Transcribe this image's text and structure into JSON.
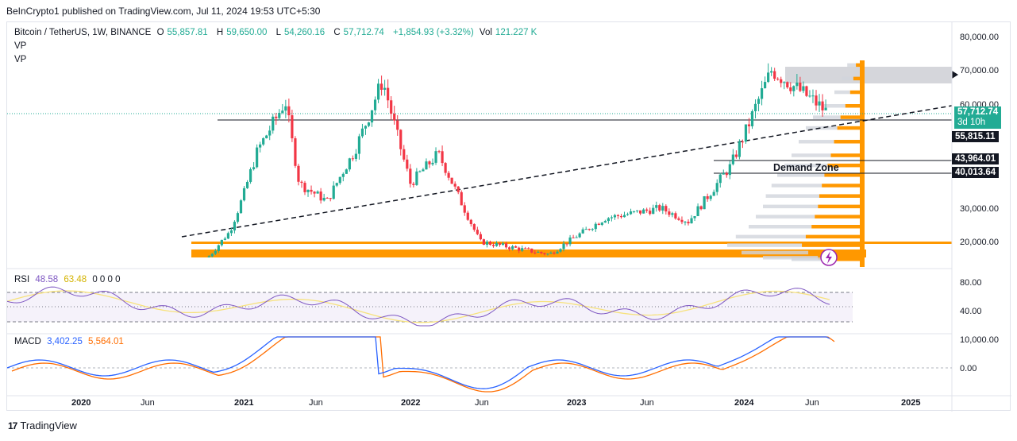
{
  "publisher": "BeInCrypto1 published on TradingView.com, Jul 11, 2024 19:53 UTC+5:30",
  "symbol": {
    "name": "Bitcoin / TetherUS, 1W, BINANCE",
    "o_label": "O",
    "o": "55,857.81",
    "h_label": "H",
    "h": "59,650.00",
    "l_label": "L",
    "l": "54,260.16",
    "c_label": "C",
    "c": "57,712.74",
    "change": "+1,854.93 (+3.32%)",
    "vol_label": "Vol",
    "vol": "121.227 K"
  },
  "indicators_top": [
    "VP",
    "VP"
  ],
  "rsi_legend": {
    "name": "RSI",
    "v1": "48.58",
    "v2": "63.48",
    "rest": "0 0 0 0"
  },
  "macd_legend": {
    "name": "MACD",
    "v1": "3,402.25",
    "v2": "5,564.01"
  },
  "price_axis": [
    "80,000.00",
    "70,000.00",
    "60,000.00",
    "30,000.00",
    "20,000.00"
  ],
  "rsi_axis": [
    "80.00",
    "40.00"
  ],
  "macd_axis": [
    "10,000.00",
    "0.00"
  ],
  "time_axis": [
    "2020",
    "Jun",
    "2021",
    "Jun",
    "2022",
    "Jun",
    "2023",
    "Jun",
    "2024",
    "Jun",
    "2025"
  ],
  "price_labels": {
    "current": "57,712.74",
    "countdown": "3d 10h",
    "level1": "55,815.11",
    "level2": "43,964.01",
    "level3": "40,013.64"
  },
  "annotation": "Demand Zone",
  "footer_brand": "TradingView",
  "colors": {
    "up": "#22ab94",
    "down": "#f23645",
    "vp": "#ff9800",
    "rsi": "#7e57c2",
    "rsi_ma": "#f7e27d",
    "macd": "#2962ff",
    "signal": "#ff6d00"
  },
  "chart_data": {
    "type": "candlestick",
    "title": "Bitcoin / TetherUS, 1W, BINANCE",
    "approx_weekly_closes": [
      {
        "x": "2020-10",
        "close": 13500
      },
      {
        "x": "2020-12",
        "close": 23000
      },
      {
        "x": "2021-01",
        "close": 34000
      },
      {
        "x": "2021-02",
        "close": 47000
      },
      {
        "x": "2021-04",
        "close": 61000
      },
      {
        "x": "2021-05",
        "close": 37000
      },
      {
        "x": "2021-07",
        "close": 32000
      },
      {
        "x": "2021-09",
        "close": 47000
      },
      {
        "x": "2021-11",
        "close": 67000
      },
      {
        "x": "2022-01",
        "close": 37000
      },
      {
        "x": "2022-03",
        "close": 46000
      },
      {
        "x": "2022-06",
        "close": 20000
      },
      {
        "x": "2022-11",
        "close": 16500
      },
      {
        "x": "2023-03",
        "close": 27000
      },
      {
        "x": "2023-07",
        "close": 30000
      },
      {
        "x": "2023-09",
        "close": 26000
      },
      {
        "x": "2023-12",
        "close": 42000
      },
      {
        "x": "2024-03",
        "close": 70000
      },
      {
        "x": "2024-06",
        "close": 61000
      },
      {
        "x": "2024-07",
        "close": 57712.74
      }
    ],
    "horizontal_levels": [
      55815.11,
      43964.01,
      40013.64
    ],
    "resistance_zone": [
      66000,
      71000
    ],
    "ylim": [
      12000,
      83000
    ]
  }
}
